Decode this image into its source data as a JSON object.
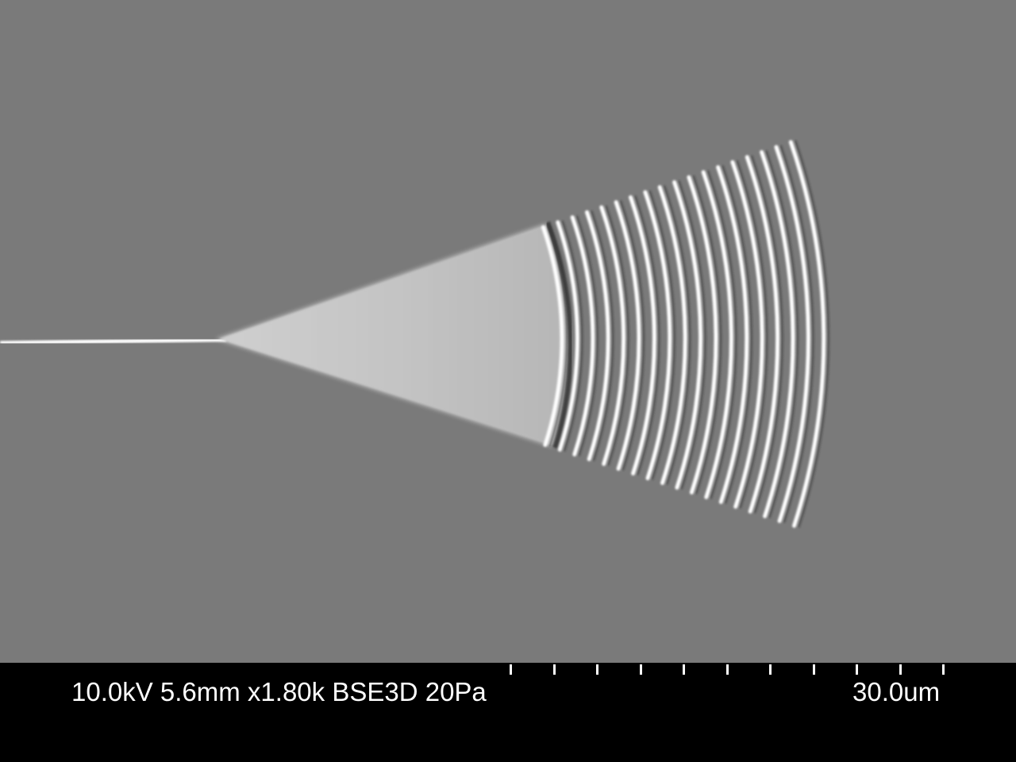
{
  "sem_image": {
    "subject": "focusing grating coupler with tapered waveguide",
    "background_color": "#7a7a7a",
    "feature_color": "#ffffff",
    "taper_color": "#bdbdbd",
    "grating_line_count": 18
  },
  "info_bar": {
    "acquisition_params": "10.0kV 5.6mm x1.80k BSE3D 20Pa",
    "scale_label": "30.0um",
    "scale_tick_count": 11
  }
}
